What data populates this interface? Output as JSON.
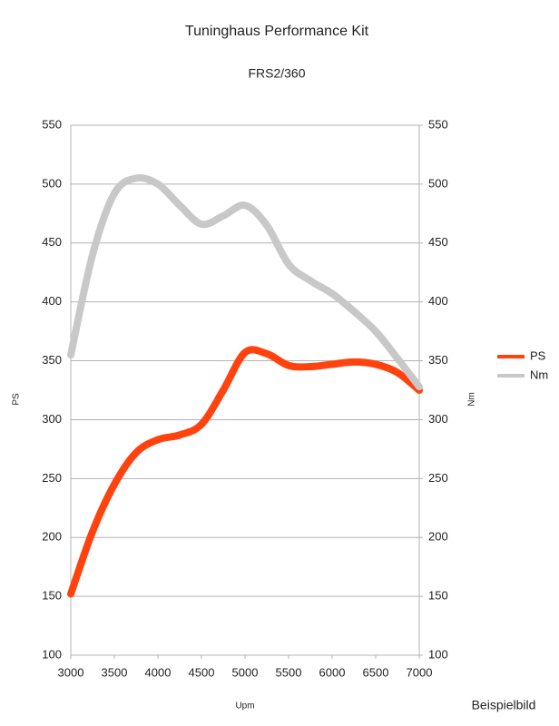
{
  "chart_data": {
    "type": "line",
    "title": "Tuninghaus Performance Kit",
    "subtitle": "FRS2/360",
    "x_label": "Upm",
    "y_label": "PS",
    "y2_label": "Nm",
    "annotation": "Beispielbild",
    "x": [
      3000,
      3250,
      3500,
      3750,
      4000,
      4250,
      4500,
      4750,
      5000,
      5250,
      5500,
      5750,
      6000,
      6250,
      6500,
      6750,
      7000
    ],
    "series": [
      {
        "name": "PS",
        "color": "#ff420e",
        "values": [
          152,
          205,
          245,
          272,
          283,
          287,
          296,
          325,
          357,
          356,
          346,
          345,
          347,
          349,
          347,
          340,
          325
        ]
      },
      {
        "name": "Nm",
        "color": "#c8c8c8",
        "axis": "y2",
        "values": [
          355,
          440,
          492,
          505,
          500,
          482,
          466,
          473,
          482,
          465,
          432,
          418,
          407,
          392,
          375,
          352,
          328
        ]
      }
    ],
    "xlim": [
      3000,
      7000
    ],
    "xticks": [
      3000,
      3500,
      4000,
      4500,
      5000,
      5500,
      6000,
      6500,
      7000
    ],
    "ylim": [
      100,
      550
    ],
    "yticks": [
      100,
      150,
      200,
      250,
      300,
      350,
      400,
      450,
      500,
      550
    ],
    "y2lim": [
      100,
      550
    ],
    "y2ticks": [
      100,
      150,
      200,
      250,
      300,
      350,
      400,
      450,
      500,
      550
    ],
    "grid": true,
    "legend": "right"
  }
}
